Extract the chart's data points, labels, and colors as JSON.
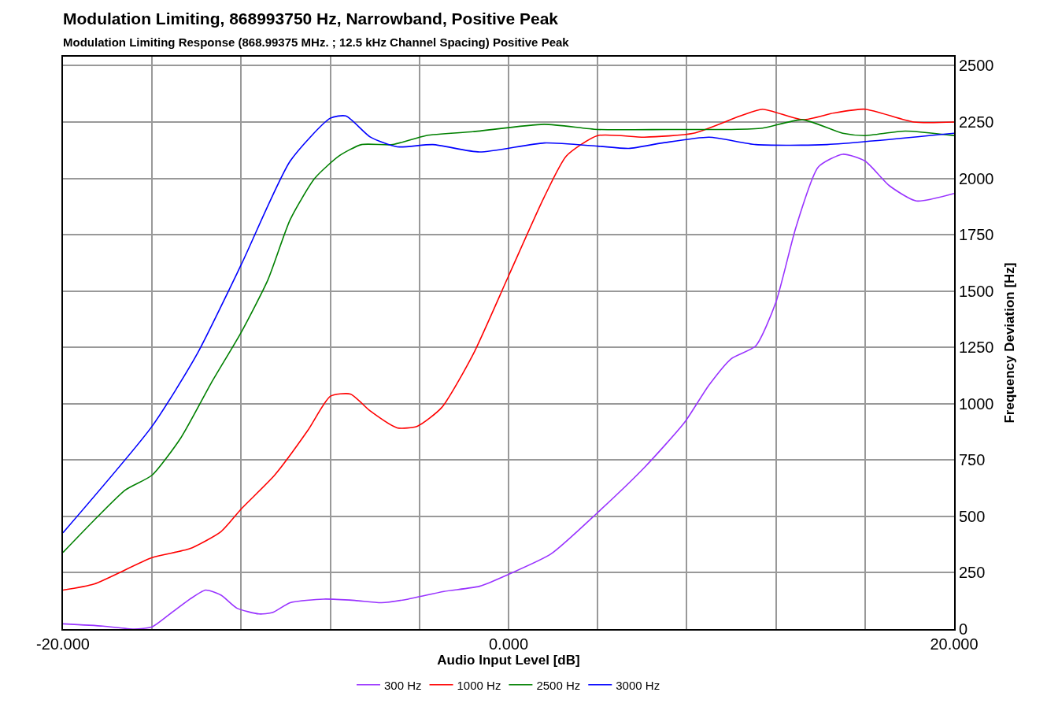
{
  "chart_data": {
    "type": "line",
    "title": "Modulation Limiting, 868993750 Hz, Narrowband, Positive Peak",
    "subtitle": "Modulation Limiting Response (868.99375 MHz. ; 12.5 kHz Channel Spacing) Positive Peak",
    "xlabel": "Audio Input Level [dB]",
    "ylabel": "Frequency Deviation [Hz]",
    "xlim": [
      -20,
      20
    ],
    "xticks": [
      {
        "value": -20,
        "label": "-20.000"
      },
      {
        "value": -16,
        "label": null
      },
      {
        "value": -12,
        "label": null
      },
      {
        "value": -8,
        "label": null
      },
      {
        "value": -4,
        "label": null
      },
      {
        "value": 0,
        "label": "0.000"
      },
      {
        "value": 4,
        "label": null
      },
      {
        "value": 8,
        "label": null
      },
      {
        "value": 12,
        "label": null
      },
      {
        "value": 16,
        "label": null
      },
      {
        "value": 20,
        "label": "20.000"
      }
    ],
    "ylim": [
      0,
      2540
    ],
    "yticks": [
      0,
      250,
      500,
      750,
      1000,
      1250,
      1500,
      1750,
      2000,
      2250,
      2500
    ],
    "grid": true,
    "legend": "bottom",
    "marker": "none",
    "line_style": "solid",
    "series": [
      {
        "name": "300 Hz",
        "color": "#9933ff",
        "x": [
          -20,
          -18.2,
          -16.8,
          -16,
          -15.2,
          -14.3,
          -13.6,
          -12.9,
          -12.2,
          -11.2,
          -10.6,
          -9.8,
          -8.3,
          -6.9,
          -5.7,
          -4.5,
          -2.9,
          -1.3,
          0,
          1.9,
          4,
          6.1,
          7.9,
          9,
          10,
          11.1,
          12,
          12.9,
          13.9,
          15,
          16,
          17.1,
          18.3,
          20
        ],
        "values": [
          23,
          13,
          0,
          10,
          67,
          133,
          173,
          150,
          93,
          67,
          73,
          117,
          133,
          127,
          117,
          133,
          167,
          190,
          243,
          333,
          517,
          717,
          917,
          1083,
          1200,
          1257,
          1450,
          1783,
          2050,
          2107,
          2077,
          1967,
          1900,
          1933
        ]
      },
      {
        "name": "1000 Hz",
        "color": "#ff0000",
        "x": [
          -20,
          -18.6,
          -16,
          -14.3,
          -12.9,
          -12,
          -10.5,
          -9,
          -8,
          -7.1,
          -6.2,
          -5,
          -4.1,
          -3,
          -1.6,
          0,
          1.6,
          2.6,
          4,
          6.1,
          8.3,
          10.4,
          11.4,
          13.2,
          14.6,
          16,
          18.2,
          20
        ],
        "values": [
          173,
          200,
          317,
          357,
          433,
          533,
          683,
          883,
          1033,
          1043,
          967,
          893,
          900,
          983,
          1217,
          1567,
          1917,
          2100,
          2190,
          2183,
          2200,
          2277,
          2307,
          2260,
          2290,
          2307,
          2250,
          2250
        ]
      },
      {
        "name": "2500 Hz",
        "color": "#008000",
        "x": [
          -20,
          -18.6,
          -17.2,
          -16,
          -14.7,
          -13.3,
          -12,
          -10.8,
          -9.8,
          -8.7,
          -7.6,
          -6.6,
          -5.2,
          -3.7,
          -1.6,
          1.6,
          4,
          7.2,
          10,
          11.4,
          13.2,
          15,
          16,
          17.8,
          20
        ],
        "values": [
          340,
          483,
          617,
          683,
          850,
          1100,
          1317,
          1550,
          1817,
          2000,
          2100,
          2150,
          2150,
          2190,
          2207,
          2240,
          2217,
          2217,
          2217,
          2223,
          2260,
          2200,
          2190,
          2210,
          2190
        ]
      },
      {
        "name": "3000 Hz",
        "color": "#0000ff",
        "x": [
          -20,
          -16,
          -14,
          -12,
          -9.8,
          -8,
          -7.3,
          -6.2,
          -5,
          -3.4,
          -1.3,
          1.6,
          4,
          5.4,
          6.9,
          9,
          11.1,
          14.3,
          20
        ],
        "values": [
          427,
          900,
          1217,
          1617,
          2077,
          2267,
          2277,
          2183,
          2140,
          2150,
          2117,
          2157,
          2143,
          2133,
          2157,
          2183,
          2150,
          2150,
          2200
        ]
      }
    ]
  }
}
